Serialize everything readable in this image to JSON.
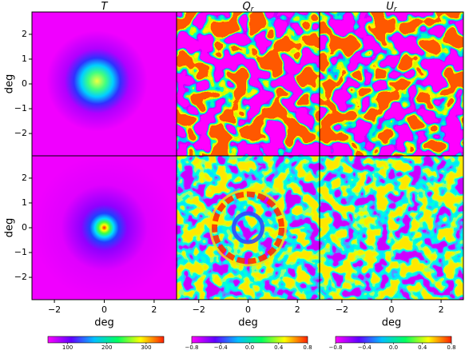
{
  "chart_data": [
    {
      "type": "heatmap",
      "title": "T",
      "ylabel": "deg",
      "xlim": [
        -2.9,
        2.9
      ],
      "ylim": [
        -2.9,
        2.9
      ],
      "yticks": [
        {
          "value": -2,
          "label": "−2"
        },
        {
          "value": -1,
          "label": "−1"
        },
        0,
        1,
        2
      ]
    },
    {
      "type": "heatmap",
      "title": "Q",
      "title_sub": "r",
      "xlim": [
        -2.9,
        2.9
      ],
      "ylim": [
        -2.9,
        2.9
      ]
    },
    {
      "type": "heatmap",
      "title": "U",
      "title_sub": "r",
      "xlim": [
        -2.9,
        2.9
      ],
      "ylim": [
        -2.9,
        2.9
      ]
    },
    {
      "type": "heatmap",
      "ylabel": "deg",
      "xlabel": "deg",
      "xlim": [
        -2.9,
        2.9
      ],
      "ylim": [
        -2.9,
        2.9
      ],
      "xticks": [
        {
          "value": -2,
          "label": "−2"
        },
        0,
        2
      ],
      "yticks": [
        {
          "value": -2,
          "label": "−2"
        },
        {
          "value": -1,
          "label": "−1"
        },
        0,
        1,
        2
      ]
    },
    {
      "type": "heatmap",
      "xlabel": "deg",
      "xlim": [
        -2.9,
        2.9
      ],
      "ylim": [
        -2.9,
        2.9
      ],
      "xticks": [
        {
          "value": -2,
          "label": "−2"
        },
        0,
        2
      ]
    },
    {
      "type": "heatmap",
      "xlabel": "deg",
      "xlim": [
        -2.9,
        2.9
      ],
      "ylim": [
        -2.9,
        2.9
      ],
      "xticks": [
        {
          "value": -2,
          "label": "−2"
        },
        0,
        2
      ]
    },
    {
      "type": "colorbar",
      "clim": [
        50,
        345
      ],
      "ticks": [
        100,
        200,
        300
      ]
    },
    {
      "type": "colorbar",
      "clim": [
        -0.8,
        0.8
      ],
      "ticks": [
        {
          "value": -0.8,
          "label": "−0.8"
        },
        {
          "value": -0.4,
          "label": "−0.4"
        },
        {
          "value": 0,
          "label": "0.0"
        },
        {
          "value": 0.4,
          "label": "0.4"
        },
        {
          "value": 0.8,
          "label": "0.8"
        }
      ]
    },
    {
      "type": "colorbar",
      "clim": [
        -0.8,
        0.8
      ],
      "ticks": [
        {
          "value": -0.8,
          "label": "−0.8"
        },
        {
          "value": -0.4,
          "label": "−0.4"
        },
        {
          "value": 0,
          "label": "0.0"
        },
        {
          "value": 0.4,
          "label": "0.4"
        },
        {
          "value": 0.8,
          "label": "0.8"
        }
      ]
    }
  ]
}
